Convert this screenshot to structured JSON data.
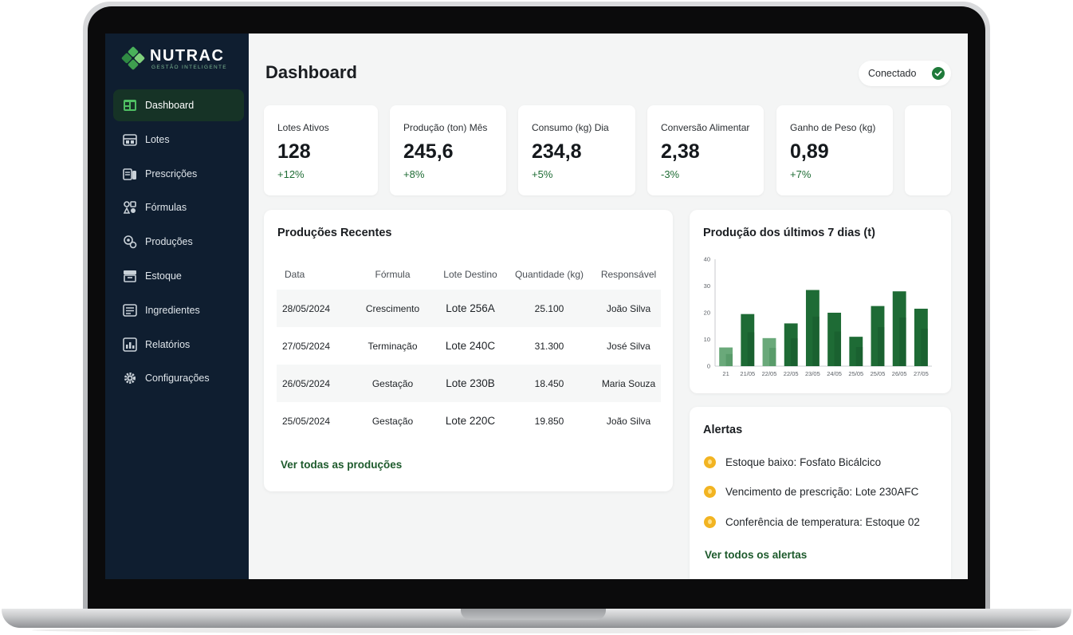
{
  "brand": {
    "name": "NUTRAC",
    "tagline": "GESTÃO INTELIGENTE",
    "accent": "#1f7a3a",
    "sidebar_bg": "#0f1e30"
  },
  "sidebar": {
    "items": [
      {
        "label": "Dashboard",
        "icon": "dashboard-icon",
        "active": true
      },
      {
        "label": "Lotes",
        "icon": "barn-icon"
      },
      {
        "label": "Prescrições",
        "icon": "prescription-icon"
      },
      {
        "label": "Fórmulas",
        "icon": "formula-icon"
      },
      {
        "label": "Produções",
        "icon": "production-icon"
      },
      {
        "label": "Estoque",
        "icon": "storage-icon"
      },
      {
        "label": "Ingredientes",
        "icon": "ingredients-icon"
      },
      {
        "label": "Relatórios",
        "icon": "report-icon"
      },
      {
        "label": "Configurações",
        "icon": "gear-icon"
      }
    ]
  },
  "header": {
    "title": "Dashboard",
    "status": "Conectado"
  },
  "kpis": [
    {
      "label": "Lotes Ativos",
      "value": "128",
      "delta": "+12%"
    },
    {
      "label": "Produção (ton) Mês",
      "value": "245,6",
      "delta": "+8%"
    },
    {
      "label": "Consumo (kg) Dia",
      "value": "234,8",
      "delta": "+5%"
    },
    {
      "label": "Conversão Alimentar",
      "value": "2,38",
      "delta": "-3%"
    },
    {
      "label": "Ganho de Peso (kg)",
      "value": "0,89",
      "delta": "+7%"
    }
  ],
  "productions": {
    "title": "Produções Recentes",
    "columns": [
      "Data",
      "Fórmula",
      "Lote Destino",
      "Quantidade (kg)",
      "Responsável"
    ],
    "rows": [
      [
        "28/05/2024",
        "Crescimento",
        "Lote 256A",
        "25.100",
        "João Silva"
      ],
      [
        "27/05/2024",
        "Terminação",
        "Lote 240C",
        "31.300",
        "José Silva"
      ],
      [
        "26/05/2024",
        "Gestação",
        "Lote 230B",
        "18.450",
        "Maria Souza"
      ],
      [
        "25/05/2024",
        "Gestação",
        "Lote 220C",
        "19.850",
        "João Silva"
      ]
    ],
    "link": "Ver todas as produções"
  },
  "chart": {
    "title": "Produção dos últimos 7 dias (t)"
  },
  "chart_data": {
    "type": "bar",
    "title": "Produção dos últimos 7 dias (t)",
    "categories": [
      "21",
      "21/05",
      "22/05",
      "22/05",
      "23/05",
      "24/05",
      "25/05",
      "25/05",
      "26/05",
      "27/05"
    ],
    "values": [
      7,
      19.5,
      10.5,
      16,
      28.5,
      20,
      11,
      22.5,
      28,
      21.5
    ],
    "yticks": [
      0,
      10,
      20,
      30,
      40
    ],
    "ylim": [
      0,
      40
    ],
    "colors": {
      "bar": "#1e6b35",
      "bar_light": "#6aa97a"
    }
  },
  "alerts": {
    "title": "Alertas",
    "items": [
      "Estoque baixo: Fosfato Bicálcico",
      "Vencimento de prescrição: Lote 230AFC",
      "Conferência de temperatura: Estoque 02"
    ],
    "link": "Ver todos os alertas"
  }
}
